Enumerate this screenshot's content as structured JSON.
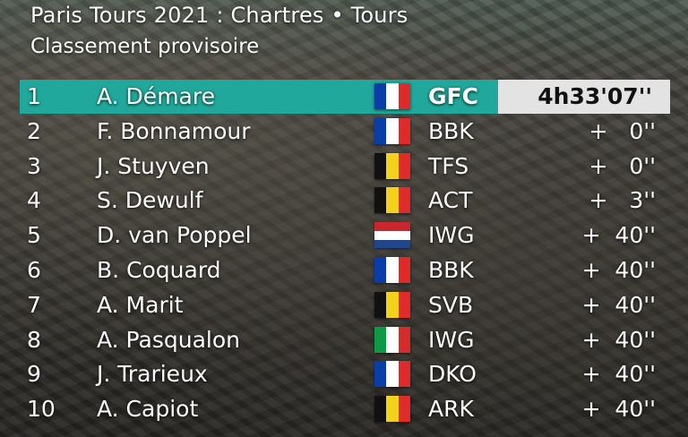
{
  "title": "Paris Tours 2021 : Chartres • Tours",
  "subtitle": "Classement provisoire",
  "colors": {
    "leader_bar": "#1fa89b",
    "time_box": "#e3e3e3"
  },
  "flags": {
    "FRA": [
      "#0a3da8",
      "#ffffff",
      "#e02a2a"
    ],
    "BEL": [
      "#111111",
      "#f4d21c",
      "#e12a2a"
    ],
    "NED": [
      "#c9262e",
      "#ffffff",
      "#21468b"
    ],
    "ITA": [
      "#0e9a44",
      "#ffffff",
      "#d62b2b"
    ]
  },
  "standings": [
    {
      "pos": "1",
      "name": "A. Démare",
      "flag": "FRA",
      "team": "GFC",
      "time": "4h33'07''"
    },
    {
      "pos": "2",
      "name": "F. Bonnamour",
      "flag": "FRA",
      "team": "BBK",
      "time": "+   0''"
    },
    {
      "pos": "3",
      "name": "J. Stuyven",
      "flag": "BEL",
      "team": "TFS",
      "time": "+   0''"
    },
    {
      "pos": "4",
      "name": "S. Dewulf",
      "flag": "BEL",
      "team": "ACT",
      "time": "+   3''"
    },
    {
      "pos": "5",
      "name": "D. van Poppel",
      "flag": "NED",
      "team": "IWG",
      "time": "+  40''"
    },
    {
      "pos": "6",
      "name": "B. Coquard",
      "flag": "FRA",
      "team": "BBK",
      "time": "+  40''"
    },
    {
      "pos": "7",
      "name": "A. Marit",
      "flag": "BEL",
      "team": "SVB",
      "time": "+  40''"
    },
    {
      "pos": "8",
      "name": "A. Pasqualon",
      "flag": "ITA",
      "team": "IWG",
      "time": "+  40''"
    },
    {
      "pos": "9",
      "name": "J. Trarieux",
      "flag": "FRA",
      "team": "DKO",
      "time": "+  40''"
    },
    {
      "pos": "10",
      "name": "A. Capiot",
      "flag": "BEL",
      "team": "ARK",
      "time": "+  40''"
    }
  ]
}
